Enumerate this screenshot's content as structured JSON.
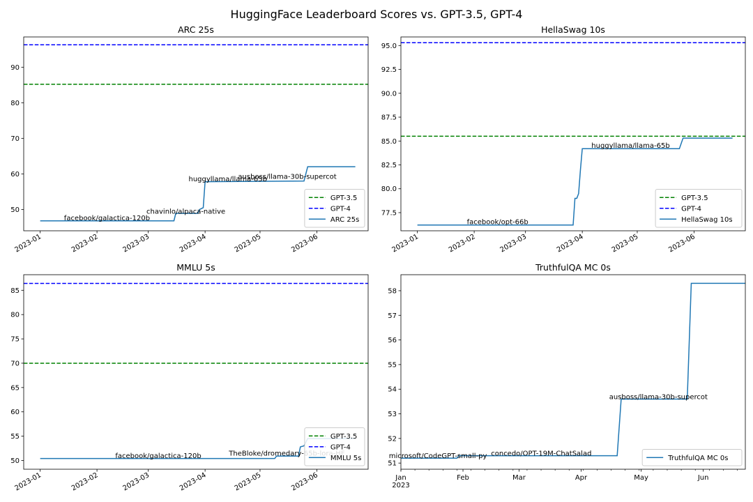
{
  "figure": {
    "suptitle": "HuggingFace Leaderboard Scores vs. GPT-3.5, GPT-4"
  },
  "chart_data": [
    {
      "type": "line",
      "title": "ARC 25s",
      "xlabel": "",
      "ylabel": "",
      "x_axis": "date",
      "xlim": [
        "2022-12-23",
        "2023-06-29"
      ],
      "ylim": [
        44,
        98.5
      ],
      "x_tick_labels": [
        "2023-01",
        "2023-02",
        "2023-03",
        "2023-04",
        "2023-05",
        "2023-06"
      ],
      "x_tick_values": [
        "2023-01-01",
        "2023-02-01",
        "2023-03-01",
        "2023-04-01",
        "2023-05-01",
        "2023-06-01"
      ],
      "y_ticks": [
        50,
        60,
        70,
        80,
        90
      ],
      "grid": false,
      "legend_position": "lower right",
      "reference_lines": [
        {
          "name": "GPT-3.5",
          "value": 85.2,
          "color": "#008000"
        },
        {
          "name": "GPT-4",
          "value": 96.3,
          "color": "#0000ff"
        }
      ],
      "series": [
        {
          "name": "ARC 25s",
          "color": "#1f77b4",
          "points": [
            [
              "2023-01-01",
              46.8
            ],
            [
              "2023-03-15",
              46.8
            ],
            [
              "2023-03-16",
              48.9
            ],
            [
              "2023-03-28",
              48.9
            ],
            [
              "2023-03-29",
              50.0
            ],
            [
              "2023-03-31",
              50.5
            ],
            [
              "2023-04-01",
              57.8
            ],
            [
              "2023-05-25",
              58.0
            ],
            [
              "2023-05-27",
              62.0
            ],
            [
              "2023-06-22",
              62.0
            ]
          ]
        }
      ],
      "annotations": [
        {
          "text": "facebook/galactica-120b",
          "x": "2023-01-14",
          "y": 46.9
        },
        {
          "text": "chavinlo/alpaca-native",
          "x": "2023-02-28",
          "y": 48.8
        },
        {
          "text": "huggyllama/llama-65b",
          "x": "2023-03-23",
          "y": 57.9
        },
        {
          "text": "ausboss/llama-30b-supercot",
          "x": "2023-04-19",
          "y": 58.6
        }
      ]
    },
    {
      "type": "line",
      "title": "HellaSwag 10s",
      "xlabel": "",
      "ylabel": "",
      "x_axis": "date",
      "xlim": [
        "2022-12-23",
        "2023-06-29"
      ],
      "ylim": [
        75.6,
        95.9
      ],
      "x_tick_labels": [
        "2023-01",
        "2023-02",
        "2023-03",
        "2023-04",
        "2023-05",
        "2023-06"
      ],
      "x_tick_values": [
        "2023-01-01",
        "2023-02-01",
        "2023-03-01",
        "2023-04-01",
        "2023-05-01",
        "2023-06-01"
      ],
      "y_ticks": [
        77.5,
        80.0,
        82.5,
        85.0,
        87.5,
        90.0,
        92.5,
        95.0
      ],
      "y_tick_labels": [
        "77.5",
        "80.0",
        "82.5",
        "85.0",
        "87.5",
        "90.0",
        "92.5",
        "95.0"
      ],
      "grid": false,
      "legend_position": "lower right",
      "reference_lines": [
        {
          "name": "GPT-3.5",
          "value": 85.5,
          "color": "#008000"
        },
        {
          "name": "GPT-4",
          "value": 95.3,
          "color": "#0000ff"
        }
      ],
      "series": [
        {
          "name": "HellaSwag 10s",
          "color": "#1f77b4",
          "points": [
            [
              "2023-01-01",
              76.2
            ],
            [
              "2023-03-27",
              76.2
            ],
            [
              "2023-03-28",
              79.0
            ],
            [
              "2023-03-29",
              79.0
            ],
            [
              "2023-03-30",
              79.5
            ],
            [
              "2023-03-31",
              82.0
            ],
            [
              "2023-04-01",
              84.2
            ],
            [
              "2023-05-24",
              84.2
            ],
            [
              "2023-05-26",
              85.3
            ],
            [
              "2023-06-22",
              85.3
            ]
          ]
        }
      ],
      "annotations": [
        {
          "text": "facebook/opt-66b",
          "x": "2023-01-28",
          "y": 76.3
        },
        {
          "text": "huggyllama/llama-65b",
          "x": "2023-04-06",
          "y": 84.3
        }
      ]
    },
    {
      "type": "line",
      "title": "MMLU 5s",
      "xlabel": "",
      "ylabel": "",
      "x_axis": "date",
      "xlim": [
        "2022-12-23",
        "2023-06-29"
      ],
      "ylim": [
        48.2,
        88.2
      ],
      "x_tick_labels": [
        "2023-01",
        "2023-02",
        "2023-03",
        "2023-04",
        "2023-05",
        "2023-06"
      ],
      "x_tick_values": [
        "2023-01-01",
        "2023-02-01",
        "2023-03-01",
        "2023-04-01",
        "2023-05-01",
        "2023-06-01"
      ],
      "y_ticks": [
        50,
        55,
        60,
        65,
        70,
        75,
        80,
        85
      ],
      "grid": false,
      "legend_position": "lower right",
      "reference_lines": [
        {
          "name": "GPT-3.5",
          "value": 70.0,
          "color": "#008000"
        },
        {
          "name": "GPT-4",
          "value": 86.4,
          "color": "#0000ff"
        }
      ],
      "series": [
        {
          "name": "MMLU 5s",
          "color": "#1f77b4",
          "points": [
            [
              "2023-01-01",
              50.4
            ],
            [
              "2023-05-09",
              50.4
            ],
            [
              "2023-05-10",
              50.9
            ],
            [
              "2023-05-22",
              50.9
            ],
            [
              "2023-05-23",
              52.8
            ],
            [
              "2023-05-25",
              53.0
            ],
            [
              "2023-05-27",
              54.5
            ],
            [
              "2023-06-22",
              54.5
            ]
          ]
        }
      ],
      "annotations": [
        {
          "text": "facebook/galactica-120b",
          "x": "2023-02-11",
          "y": 50.5
        },
        {
          "text": "TheBloke/dromedary-65b-lora-HF",
          "x": "2023-04-14",
          "y": 51.0
        }
      ]
    },
    {
      "type": "line",
      "title": "TruthfulQA MC 0s",
      "xlabel": "",
      "ylabel": "",
      "x_axis": "date",
      "xlim": [
        "2023-01-01",
        "2023-06-22"
      ],
      "ylim": [
        50.75,
        58.65
      ],
      "x_tick_labels": [
        "Jan\n2023",
        "Feb",
        "Mar",
        "Apr",
        "May",
        "Jun"
      ],
      "x_tick_values": [
        "2023-01-01",
        "2023-02-01",
        "2023-03-01",
        "2023-04-01",
        "2023-05-01",
        "2023-06-01"
      ],
      "y_ticks": [
        51,
        52,
        53,
        54,
        55,
        56,
        57,
        58
      ],
      "grid": false,
      "legend_position": "lower right",
      "series": [
        {
          "name": "TruthfulQA MC 0s",
          "color": "#1f77b4",
          "points": [
            [
              "2023-01-01",
              51.2
            ],
            [
              "2023-01-29",
              51.2
            ],
            [
              "2023-01-30",
              51.3
            ],
            [
              "2023-04-19",
              51.3
            ],
            [
              "2023-04-21",
              53.6
            ],
            [
              "2023-05-24",
              53.6
            ],
            [
              "2023-05-26",
              58.3
            ],
            [
              "2023-06-22",
              58.3
            ]
          ]
        }
      ],
      "annotations": [
        {
          "text": "microsoft/CodeGPT-small-py",
          "x": "2022-12-26",
          "y": 51.2
        },
        {
          "text": "concedo/OPT-19M-ChatSalad",
          "x": "2023-02-15",
          "y": 51.3
        },
        {
          "text": "ausboss/llama-30b-supercot",
          "x": "2023-04-15",
          "y": 53.6
        }
      ]
    }
  ]
}
